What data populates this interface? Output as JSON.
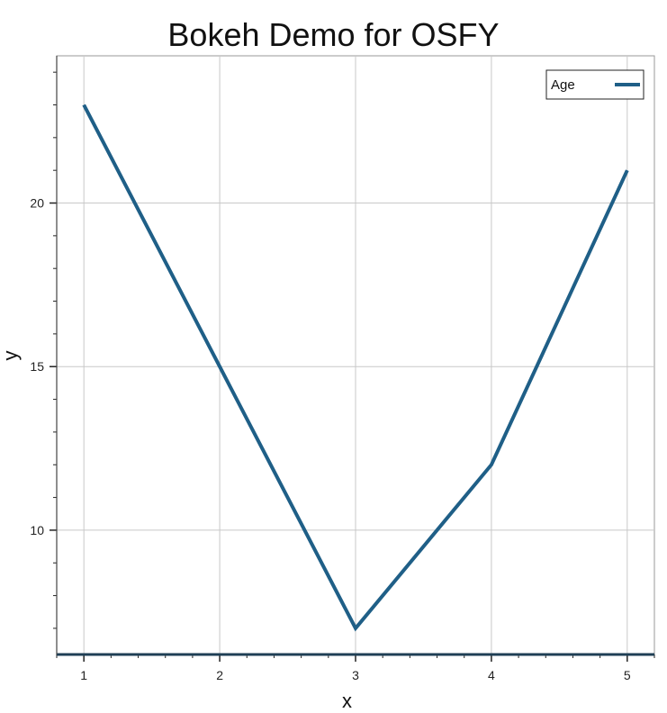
{
  "chart_data": {
    "type": "line",
    "title": "Bokeh Demo for OSFY",
    "xlabel": "x",
    "ylabel": "y",
    "x": [
      1,
      2,
      3,
      4,
      5
    ],
    "series": [
      {
        "name": "Age",
        "values": [
          23,
          15,
          7,
          12,
          21
        ],
        "color": "#1f5f87"
      }
    ],
    "xlim": [
      0.8,
      5.2
    ],
    "ylim": [
      6.2,
      24.5
    ],
    "x_ticks": [
      1,
      2,
      3,
      4,
      5
    ],
    "y_ticks": [
      10,
      15,
      20
    ],
    "grid": true,
    "legend_position": "top-right"
  }
}
